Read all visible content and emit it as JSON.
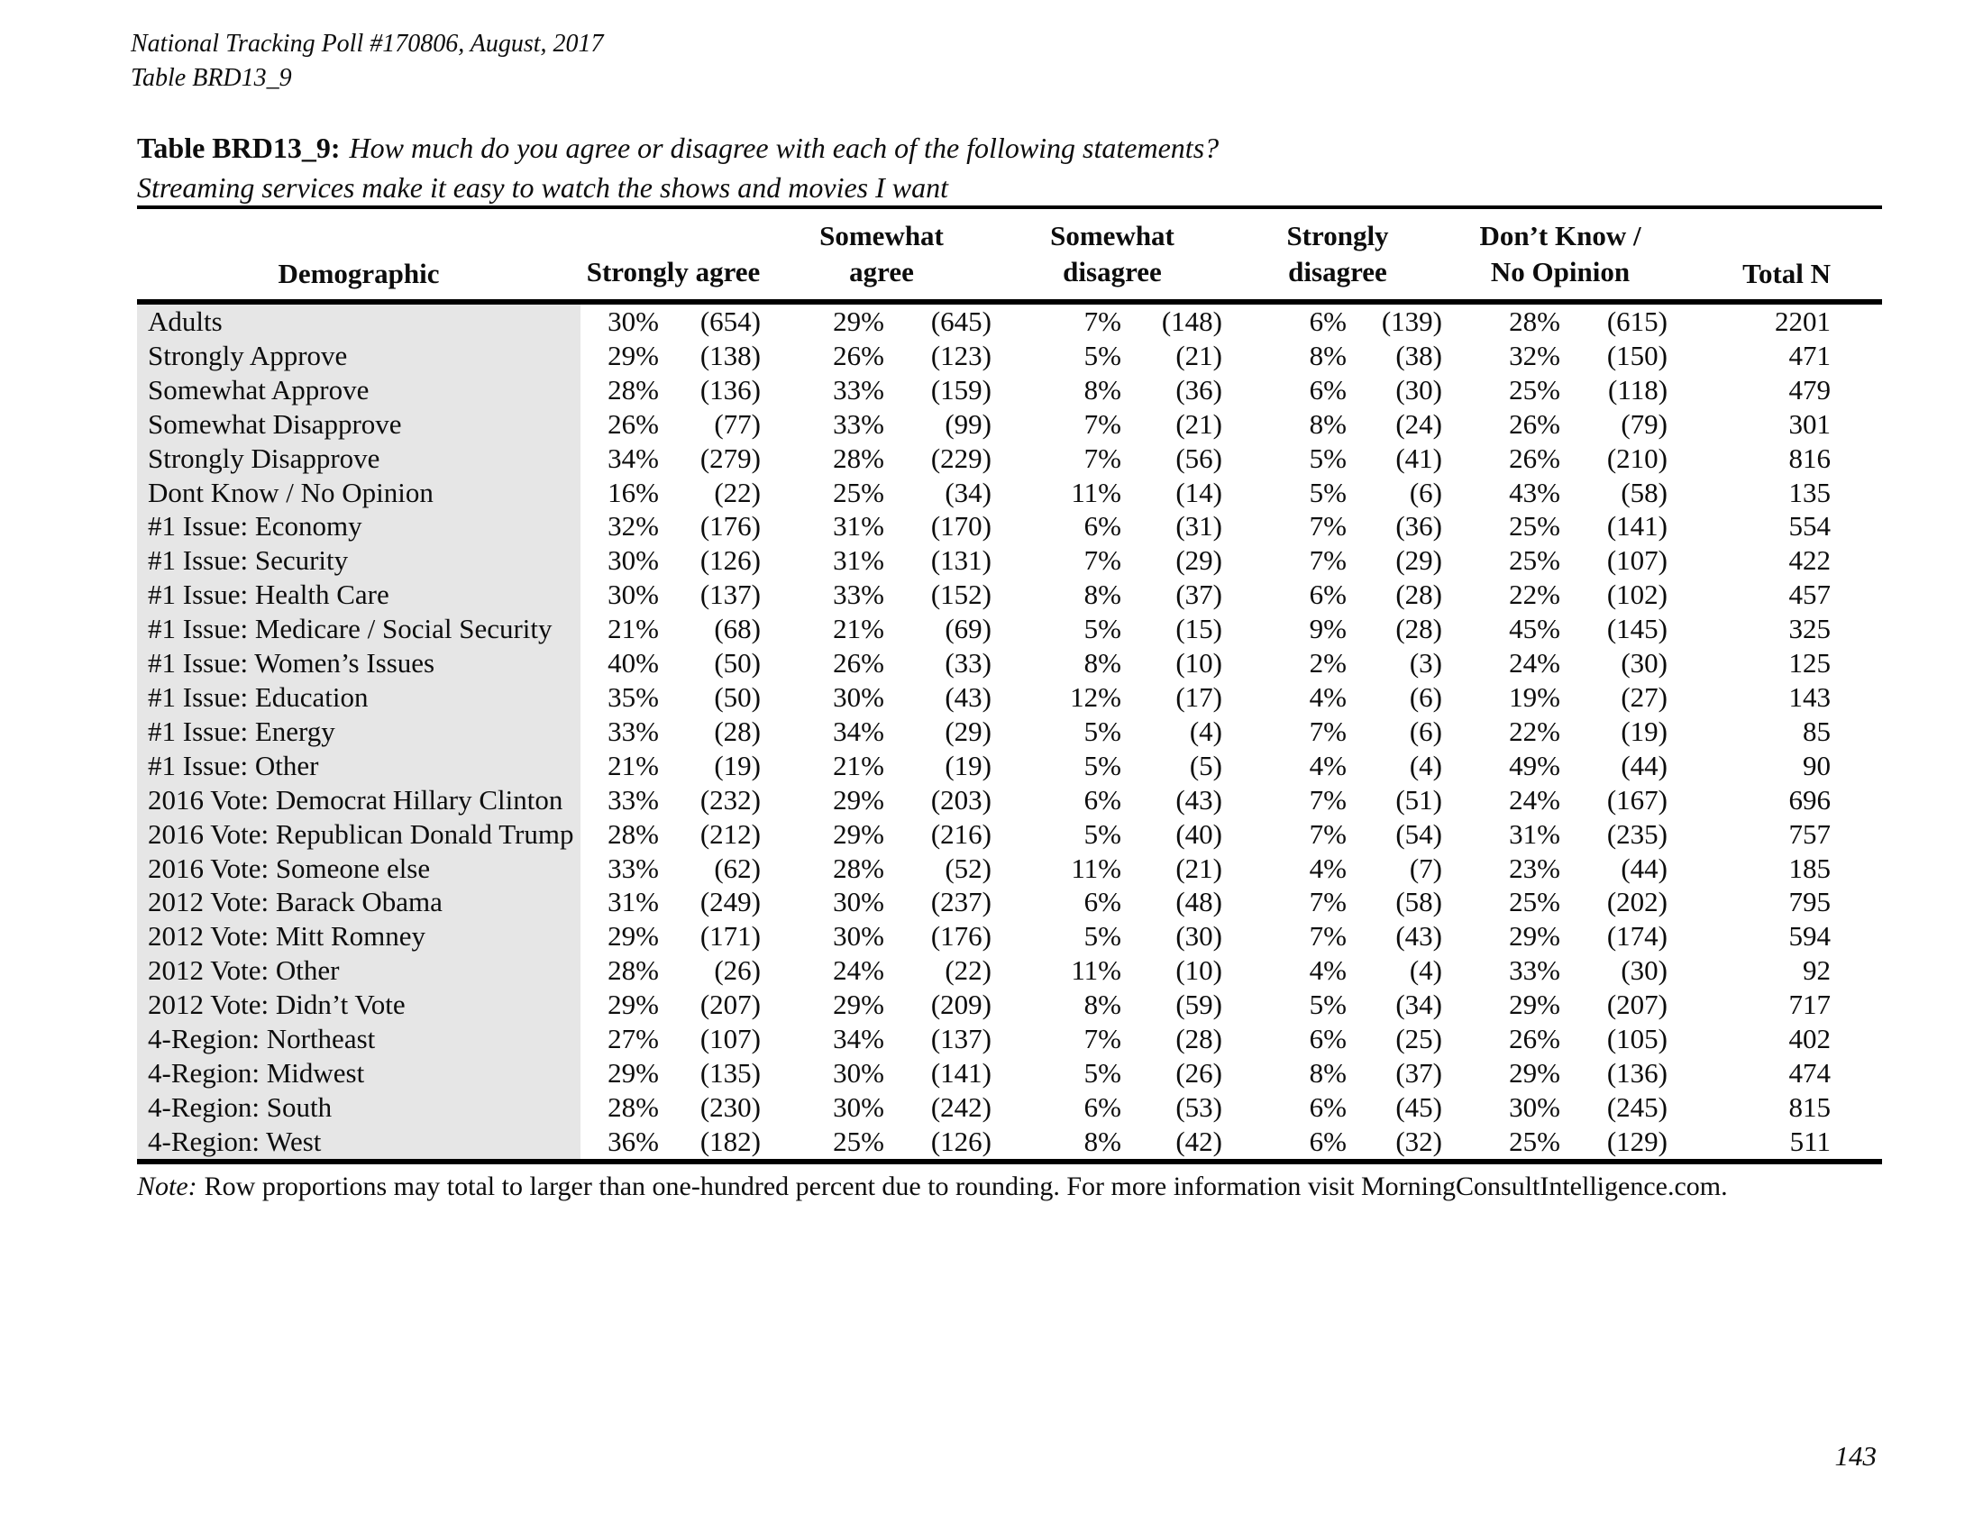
{
  "page": {
    "header_line1": "National Tracking Poll #170806, August, 2017",
    "header_line2": "Table BRD13_9",
    "note_label": "Note:",
    "note_text": "Row proportions may total to larger than one-hundred percent due to rounding. For more information visit MorningConsultIntelligence.com.",
    "page_number": "143"
  },
  "table": {
    "title_label": "Table BRD13_9:",
    "title_question": "How much do you agree or disagree with each of the following statements?",
    "subtitle": "Streaming services make it easy to watch the shows and movies I want",
    "columns": {
      "demographic": "Demographic",
      "groups": [
        {
          "line1": "",
          "line2": "Strongly agree"
        },
        {
          "line1": "Somewhat",
          "line2": "agree"
        },
        {
          "line1": "Somewhat",
          "line2": "disagree"
        },
        {
          "line1": "Strongly",
          "line2": "disagree"
        },
        {
          "line1": "Don’t Know /",
          "line2": "No Opinion"
        }
      ],
      "total": "Total N"
    },
    "rows": [
      {
        "label": "Adults",
        "cells": [
          "30%",
          "(654)",
          "29%",
          "(645)",
          "7%",
          "(148)",
          "6%",
          "(139)",
          "28%",
          "(615)"
        ],
        "total": "2201"
      },
      {
        "label": "Strongly Approve",
        "cells": [
          "29%",
          "(138)",
          "26%",
          "(123)",
          "5%",
          "(21)",
          "8%",
          "(38)",
          "32%",
          "(150)"
        ],
        "total": "471"
      },
      {
        "label": "Somewhat Approve",
        "cells": [
          "28%",
          "(136)",
          "33%",
          "(159)",
          "8%",
          "(36)",
          "6%",
          "(30)",
          "25%",
          "(118)"
        ],
        "total": "479"
      },
      {
        "label": "Somewhat Disapprove",
        "cells": [
          "26%",
          "(77)",
          "33%",
          "(99)",
          "7%",
          "(21)",
          "8%",
          "(24)",
          "26%",
          "(79)"
        ],
        "total": "301"
      },
      {
        "label": "Strongly Disapprove",
        "cells": [
          "34%",
          "(279)",
          "28%",
          "(229)",
          "7%",
          "(56)",
          "5%",
          "(41)",
          "26%",
          "(210)"
        ],
        "total": "816"
      },
      {
        "label": "Dont Know / No Opinion",
        "cells": [
          "16%",
          "(22)",
          "25%",
          "(34)",
          "11%",
          "(14)",
          "5%",
          "(6)",
          "43%",
          "(58)"
        ],
        "total": "135"
      },
      {
        "label": "#1 Issue: Economy",
        "cells": [
          "32%",
          "(176)",
          "31%",
          "(170)",
          "6%",
          "(31)",
          "7%",
          "(36)",
          "25%",
          "(141)"
        ],
        "total": "554"
      },
      {
        "label": "#1 Issue: Security",
        "cells": [
          "30%",
          "(126)",
          "31%",
          "(131)",
          "7%",
          "(29)",
          "7%",
          "(29)",
          "25%",
          "(107)"
        ],
        "total": "422"
      },
      {
        "label": "#1 Issue: Health Care",
        "cells": [
          "30%",
          "(137)",
          "33%",
          "(152)",
          "8%",
          "(37)",
          "6%",
          "(28)",
          "22%",
          "(102)"
        ],
        "total": "457"
      },
      {
        "label": "#1 Issue: Medicare / Social Security",
        "cells": [
          "21%",
          "(68)",
          "21%",
          "(69)",
          "5%",
          "(15)",
          "9%",
          "(28)",
          "45%",
          "(145)"
        ],
        "total": "325"
      },
      {
        "label": "#1 Issue: Women’s Issues",
        "cells": [
          "40%",
          "(50)",
          "26%",
          "(33)",
          "8%",
          "(10)",
          "2%",
          "(3)",
          "24%",
          "(30)"
        ],
        "total": "125"
      },
      {
        "label": "#1 Issue: Education",
        "cells": [
          "35%",
          "(50)",
          "30%",
          "(43)",
          "12%",
          "(17)",
          "4%",
          "(6)",
          "19%",
          "(27)"
        ],
        "total": "143"
      },
      {
        "label": "#1 Issue: Energy",
        "cells": [
          "33%",
          "(28)",
          "34%",
          "(29)",
          "5%",
          "(4)",
          "7%",
          "(6)",
          "22%",
          "(19)"
        ],
        "total": "85"
      },
      {
        "label": "#1 Issue: Other",
        "cells": [
          "21%",
          "(19)",
          "21%",
          "(19)",
          "5%",
          "(5)",
          "4%",
          "(4)",
          "49%",
          "(44)"
        ],
        "total": "90"
      },
      {
        "label": "2016 Vote: Democrat Hillary Clinton",
        "cells": [
          "33%",
          "(232)",
          "29%",
          "(203)",
          "6%",
          "(43)",
          "7%",
          "(51)",
          "24%",
          "(167)"
        ],
        "total": "696"
      },
      {
        "label": "2016 Vote: Republican Donald Trump",
        "cells": [
          "28%",
          "(212)",
          "29%",
          "(216)",
          "5%",
          "(40)",
          "7%",
          "(54)",
          "31%",
          "(235)"
        ],
        "total": "757"
      },
      {
        "label": "2016 Vote: Someone else",
        "cells": [
          "33%",
          "(62)",
          "28%",
          "(52)",
          "11%",
          "(21)",
          "4%",
          "(7)",
          "23%",
          "(44)"
        ],
        "total": "185"
      },
      {
        "label": "2012 Vote: Barack Obama",
        "cells": [
          "31%",
          "(249)",
          "30%",
          "(237)",
          "6%",
          "(48)",
          "7%",
          "(58)",
          "25%",
          "(202)"
        ],
        "total": "795"
      },
      {
        "label": "2012 Vote: Mitt Romney",
        "cells": [
          "29%",
          "(171)",
          "30%",
          "(176)",
          "5%",
          "(30)",
          "7%",
          "(43)",
          "29%",
          "(174)"
        ],
        "total": "594"
      },
      {
        "label": "2012 Vote: Other",
        "cells": [
          "28%",
          "(26)",
          "24%",
          "(22)",
          "11%",
          "(10)",
          "4%",
          "(4)",
          "33%",
          "(30)"
        ],
        "total": "92"
      },
      {
        "label": "2012 Vote: Didn’t Vote",
        "cells": [
          "29%",
          "(207)",
          "29%",
          "(209)",
          "8%",
          "(59)",
          "5%",
          "(34)",
          "29%",
          "(207)"
        ],
        "total": "717"
      },
      {
        "label": "4-Region: Northeast",
        "cells": [
          "27%",
          "(107)",
          "34%",
          "(137)",
          "7%",
          "(28)",
          "6%",
          "(25)",
          "26%",
          "(105)"
        ],
        "total": "402"
      },
      {
        "label": "4-Region: Midwest",
        "cells": [
          "29%",
          "(135)",
          "30%",
          "(141)",
          "5%",
          "(26)",
          "8%",
          "(37)",
          "29%",
          "(136)"
        ],
        "total": "474"
      },
      {
        "label": "4-Region: South",
        "cells": [
          "28%",
          "(230)",
          "30%",
          "(242)",
          "6%",
          "(53)",
          "6%",
          "(45)",
          "30%",
          "(245)"
        ],
        "total": "815"
      },
      {
        "label": "4-Region: West",
        "cells": [
          "36%",
          "(182)",
          "25%",
          "(126)",
          "8%",
          "(42)",
          "6%",
          "(32)",
          "25%",
          "(129)"
        ],
        "total": "511"
      }
    ]
  }
}
